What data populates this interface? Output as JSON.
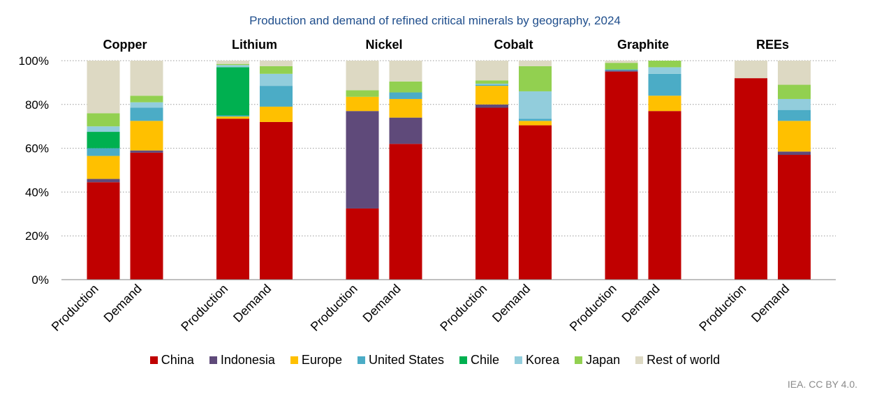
{
  "title": "Production and demand of refined critical minerals by geography, 2024",
  "source": "IEA. CC BY 4.0.",
  "chart_data": {
    "type": "bar",
    "stacked": true,
    "ylim": [
      0,
      100
    ],
    "yticks": [
      "0%",
      "20%",
      "40%",
      "60%",
      "80%",
      "100%"
    ],
    "ytick_values": [
      0,
      20,
      40,
      60,
      80,
      100
    ],
    "grid": "horizontal dotted",
    "legend_position": "bottom",
    "series": [
      {
        "name": "China",
        "color": "#c00000"
      },
      {
        "name": "Indonesia",
        "color": "#5f4a7a"
      },
      {
        "name": "Europe",
        "color": "#ffc000"
      },
      {
        "name": "United States",
        "color": "#4bacc6"
      },
      {
        "name": "Chile",
        "color": "#00b050"
      },
      {
        "name": "Korea",
        "color": "#92cddc"
      },
      {
        "name": "Japan",
        "color": "#92d050"
      },
      {
        "name": "Rest of world",
        "color": "#ddd9c3"
      }
    ],
    "groups": [
      {
        "name": "Copper",
        "bars": [
          {
            "label": "Production",
            "values": [
              44.5,
              1.5,
              10.5,
              3.5,
              7.5,
              2.5,
              6,
              24
            ]
          },
          {
            "label": "Demand",
            "values": [
              58,
              1,
              13.5,
              6,
              0,
              2.5,
              3,
              16
            ]
          }
        ]
      },
      {
        "name": "Lithium",
        "bars": [
          {
            "label": "Production",
            "values": [
              73.5,
              0,
              1,
              0.5,
              22,
              1,
              0.5,
              1.5
            ]
          },
          {
            "label": "Demand",
            "values": [
              72,
              0,
              7,
              9.5,
              0,
              5.5,
              3.5,
              2.5
            ]
          }
        ]
      },
      {
        "name": "Nickel",
        "bars": [
          {
            "label": "Production",
            "values": [
              32.5,
              44.5,
              6.5,
              0,
              0,
              0,
              3,
              13.5
            ]
          },
          {
            "label": "Demand",
            "values": [
              62,
              12,
              8.5,
              3,
              0,
              0,
              5,
              9.5
            ]
          }
        ]
      },
      {
        "name": "Cobalt",
        "bars": [
          {
            "label": "Production",
            "values": [
              78.5,
              1.5,
              8.5,
              0.5,
              0,
              0.5,
              1.5,
              9
            ]
          },
          {
            "label": "Demand",
            "values": [
              70.5,
              0,
              2,
              1,
              0,
              12.5,
              11.5,
              2.5
            ]
          }
        ]
      },
      {
        "name": "Graphite",
        "bars": [
          {
            "label": "Production",
            "values": [
              95,
              0.5,
              0,
              0.5,
              0,
              0,
              3,
              1
            ]
          },
          {
            "label": "Demand",
            "values": [
              77,
              0,
              7,
              10,
              0,
              3,
              3,
              0
            ]
          }
        ]
      },
      {
        "name": "REEs",
        "bars": [
          {
            "label": "Production",
            "values": [
              92,
              0,
              0,
              0,
              0,
              0,
              0,
              8
            ]
          },
          {
            "label": "Demand",
            "values": [
              57,
              1.5,
              14,
              5,
              0,
              5,
              6.5,
              11
            ]
          }
        ]
      }
    ]
  }
}
